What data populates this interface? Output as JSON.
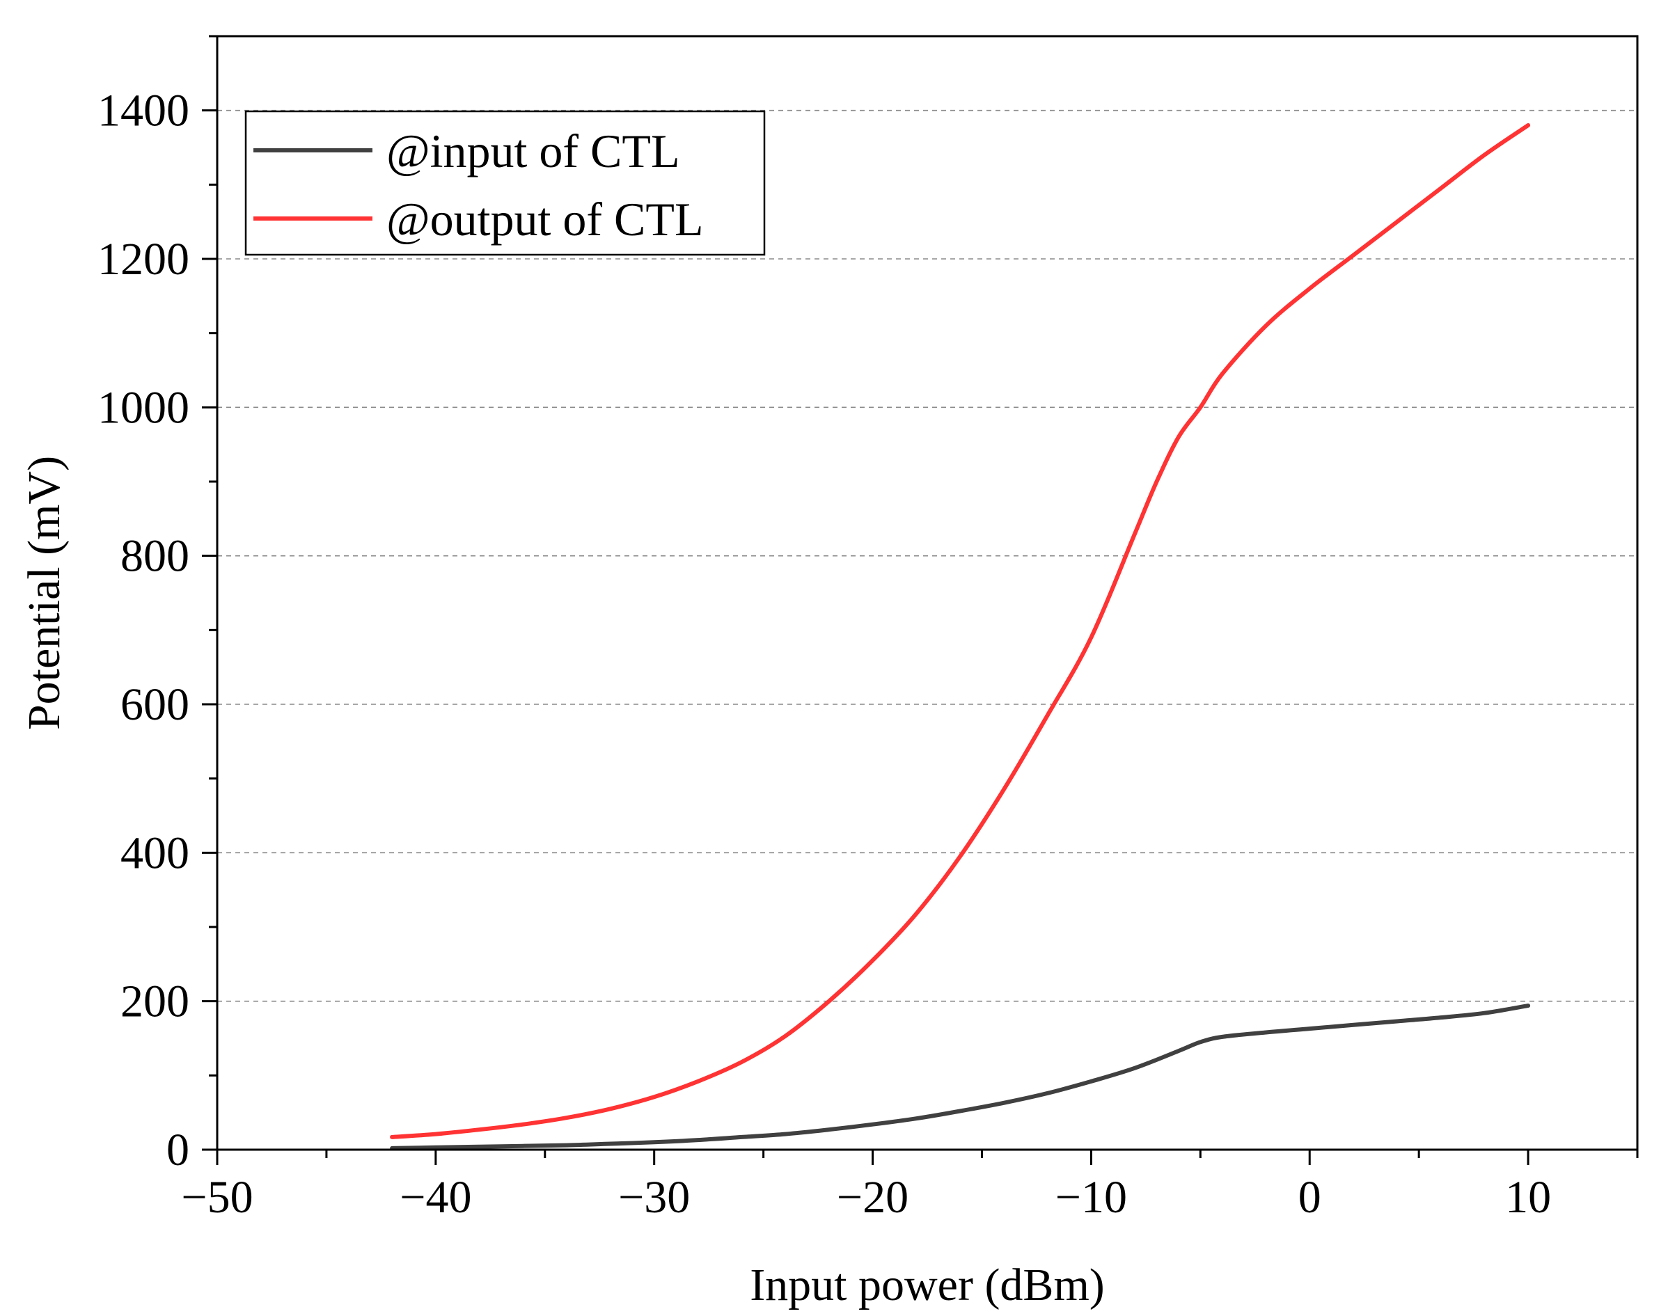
{
  "chart_data": {
    "type": "line",
    "title": "",
    "xlabel": "Input power (dBm)",
    "ylabel": "Potential (mV)",
    "xlim": [
      -50,
      15
    ],
    "ylim": [
      0,
      1500
    ],
    "x_ticks": [
      -50,
      -40,
      -30,
      -20,
      -10,
      0,
      10
    ],
    "x_tick_labels": [
      "−50",
      "−40",
      "−30",
      "−20",
      "−10",
      "0",
      "10"
    ],
    "x_minor_ticks": [
      -45,
      -35,
      -25,
      -15,
      -5,
      5,
      15
    ],
    "y_ticks": [
      0,
      200,
      400,
      600,
      800,
      1000,
      1200,
      1400
    ],
    "y_tick_labels": [
      "0",
      "200",
      "400",
      "600",
      "800",
      "1000",
      "1200",
      "1400"
    ],
    "y_minor_ticks": [
      100,
      300,
      500,
      700,
      900,
      1100,
      1300,
      1500
    ],
    "grid": "horizontal dashed at major y ticks",
    "legend": {
      "position": "top-left"
    },
    "series": [
      {
        "name": "@input of CTL",
        "color": "#404040",
        "x": [
          -42,
          -40,
          -38,
          -36,
          -34,
          -32,
          -30,
          -28,
          -26,
          -24,
          -22,
          -20,
          -18,
          -16,
          -14,
          -12,
          -10,
          -8,
          -6,
          -5,
          -4,
          -2,
          0,
          2,
          4,
          6,
          8,
          10
        ],
        "y": [
          2,
          3,
          4,
          5,
          6,
          8,
          10,
          13,
          17,
          21,
          27,
          34,
          42,
          52,
          63,
          76,
          92,
          110,
          133,
          145,
          152,
          158,
          163,
          168,
          173,
          178,
          184,
          194
        ]
      },
      {
        "name": "@output of CTL",
        "color": "#ff3333",
        "x": [
          -42,
          -40,
          -38,
          -36,
          -34,
          -32,
          -30,
          -28,
          -26,
          -24,
          -22,
          -20,
          -18,
          -16,
          -14,
          -12,
          -10,
          -8,
          -7,
          -6,
          -5,
          -4,
          -2,
          0,
          2,
          4,
          6,
          8,
          10
        ],
        "y": [
          17,
          21,
          27,
          34,
          43,
          55,
          71,
          92,
          118,
          153,
          200,
          255,
          318,
          395,
          485,
          585,
          690,
          830,
          900,
          960,
          1000,
          1045,
          1110,
          1160,
          1205,
          1250,
          1295,
          1340,
          1380
        ]
      }
    ]
  }
}
